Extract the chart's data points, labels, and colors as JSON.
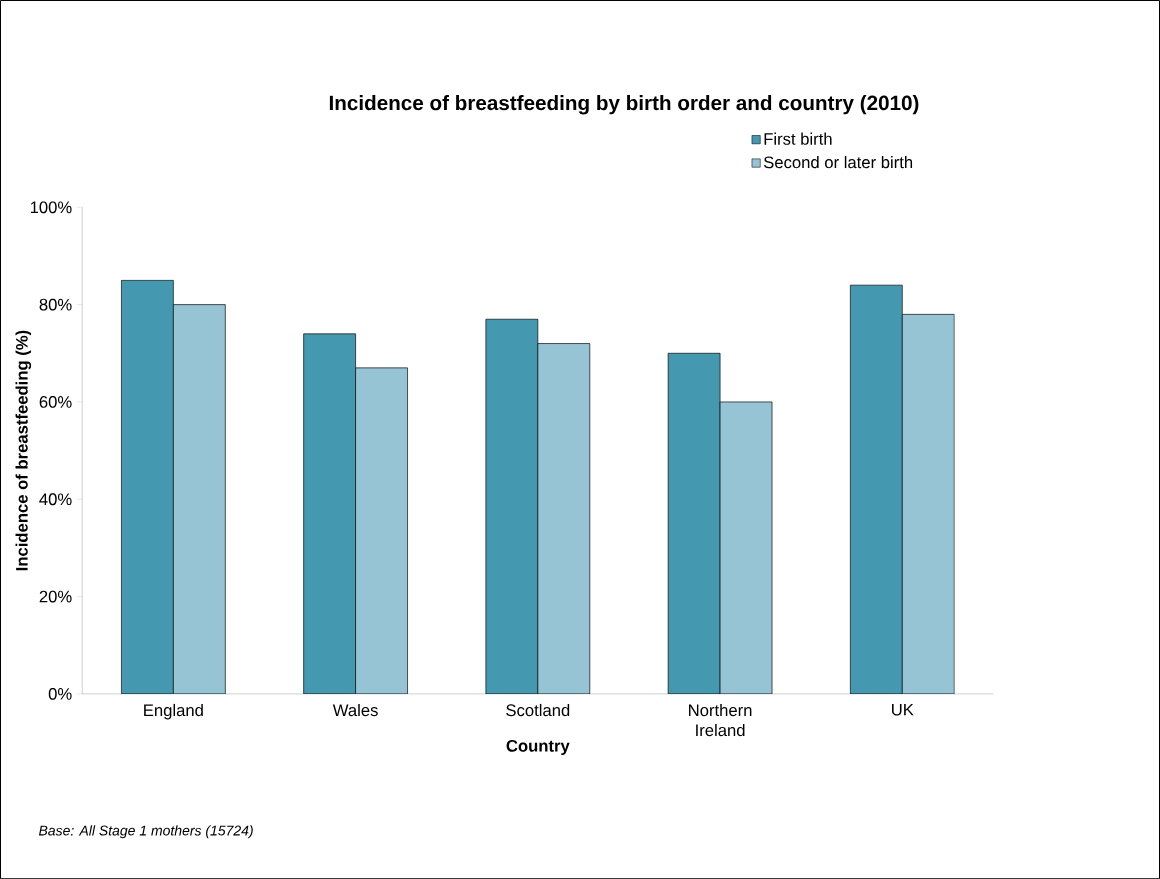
{
  "chart_data": {
    "type": "bar",
    "title": "Incidence of breastfeeding by birth order and country (2010)",
    "xlabel": "Country",
    "ylabel": "Incidence of breastfeeding (%)",
    "categories": [
      "England",
      "Wales",
      "Scotland",
      "Northern Ireland",
      "UK"
    ],
    "series": [
      {
        "name": "First birth",
        "color": "#4499b0",
        "values": [
          85,
          74,
          77,
          70,
          84
        ]
      },
      {
        "name": "Second or later birth",
        "color": "#96c4d4",
        "values": [
          80,
          67,
          72,
          60,
          78
        ]
      }
    ],
    "ylim": [
      0,
      100
    ],
    "yticks": [
      {
        "value": 0,
        "label": "0%"
      },
      {
        "value": 20,
        "label": "20%"
      },
      {
        "value": 40,
        "label": "40%"
      },
      {
        "value": 60,
        "label": "60%"
      },
      {
        "value": 80,
        "label": "80%"
      },
      {
        "value": 100,
        "label": "100%"
      }
    ],
    "grid": false,
    "legend": "top right",
    "annotations": [
      "Base: All Stage 1 mothers (15724)"
    ]
  }
}
